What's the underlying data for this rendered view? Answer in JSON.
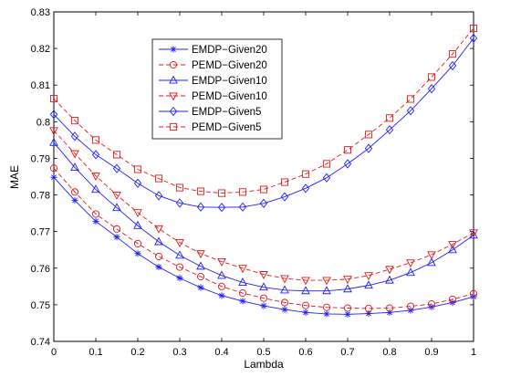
{
  "colors": {
    "blue": "#1f1fff",
    "red": "#e01818"
  },
  "chart_data": {
    "type": "line",
    "title": "",
    "xlabel": "Lambda",
    "ylabel": "MAE",
    "xlim": [
      0,
      1
    ],
    "ylim": [
      0.74,
      0.83
    ],
    "x_ticks": [
      "0",
      "0.1",
      "0.2",
      "0.3",
      "0.4",
      "0.5",
      "0.6",
      "0.7",
      "0.8",
      "0.9",
      "1"
    ],
    "y_ticks": [
      "0.74",
      "0.75",
      "0.76",
      "0.77",
      "0.78",
      "0.79",
      "0.8",
      "0.81",
      "0.82",
      "0.83"
    ],
    "grid": false,
    "legend_position": "top-left",
    "x": [
      0,
      0.05,
      0.1,
      0.15,
      0.2,
      0.25,
      0.3,
      0.35,
      0.4,
      0.45,
      0.5,
      0.55,
      0.6,
      0.65,
      0.7,
      0.75,
      0.8,
      0.85,
      0.9,
      0.95,
      1
    ],
    "series": [
      {
        "name": "EMDP−Given20",
        "color": "blue",
        "dash": "solid",
        "marker": "asterisk",
        "values": [
          0.7848,
          0.7785,
          0.7728,
          0.7685,
          0.764,
          0.7603,
          0.7573,
          0.7547,
          0.7525,
          0.751,
          0.7497,
          0.7487,
          0.7479,
          0.7475,
          0.7474,
          0.7476,
          0.7479,
          0.7485,
          0.7494,
          0.7506,
          0.7522
        ]
      },
      {
        "name": "PEMD−Given20",
        "color": "red",
        "dash": "dashed",
        "marker": "circle",
        "values": [
          0.7873,
          0.7808,
          0.7748,
          0.7707,
          0.7667,
          0.7632,
          0.7603,
          0.7577,
          0.755,
          0.7532,
          0.7518,
          0.7506,
          0.7498,
          0.7493,
          0.7491,
          0.749,
          0.7491,
          0.7496,
          0.7502,
          0.7515,
          0.753
        ]
      },
      {
        "name": "EMDP−Given10",
        "color": "blue",
        "dash": "solid",
        "marker": "triangle-up",
        "values": [
          0.7943,
          0.7875,
          0.7815,
          0.7765,
          0.7716,
          0.7672,
          0.7635,
          0.7605,
          0.758,
          0.7561,
          0.7548,
          0.754,
          0.7538,
          0.7538,
          0.7543,
          0.7553,
          0.7567,
          0.7588,
          0.7615,
          0.765,
          0.769
        ]
      },
      {
        "name": "PEMD−Given10",
        "color": "red",
        "dash": "dashed",
        "marker": "triangle-down",
        "values": [
          0.7976,
          0.7913,
          0.7852,
          0.78,
          0.7752,
          0.7708,
          0.767,
          0.764,
          0.7618,
          0.76,
          0.7583,
          0.7572,
          0.7567,
          0.7567,
          0.757,
          0.758,
          0.7597,
          0.7615,
          0.7637,
          0.7665,
          0.7697
        ]
      },
      {
        "name": "EMDP−Given5",
        "color": "blue",
        "dash": "solid",
        "marker": "diamond",
        "values": [
          0.802,
          0.796,
          0.791,
          0.7872,
          0.7832,
          0.7798,
          0.7778,
          0.7767,
          0.7766,
          0.7767,
          0.7777,
          0.7795,
          0.7818,
          0.7847,
          0.7885,
          0.7927,
          0.7978,
          0.803,
          0.809,
          0.8153,
          0.8228
        ]
      },
      {
        "name": "PEMD−Given5",
        "color": "red",
        "dash": "dashed",
        "marker": "square",
        "values": [
          0.8063,
          0.8003,
          0.795,
          0.791,
          0.787,
          0.7845,
          0.782,
          0.781,
          0.7805,
          0.7808,
          0.7815,
          0.7835,
          0.7857,
          0.7885,
          0.7923,
          0.7965,
          0.801,
          0.8062,
          0.8122,
          0.8185,
          0.8255
        ]
      }
    ]
  }
}
